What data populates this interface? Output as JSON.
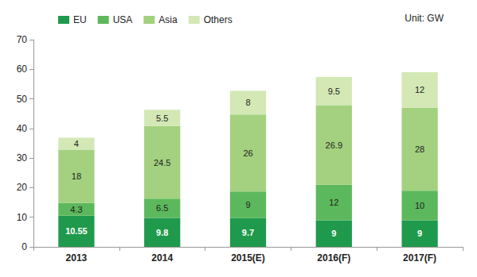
{
  "chart_data": {
    "type": "bar",
    "stacked": true,
    "data_labels": true,
    "grid": false,
    "legend": "top-left",
    "annotation": "Unit: GW",
    "categories": [
      "2013",
      "2014",
      "2015(E)",
      "2016(F)",
      "2017(F)"
    ],
    "series": [
      {
        "name": "EU",
        "color": "#1f9a4c",
        "values": [
          10.55,
          9.8,
          9.7,
          9,
          9
        ]
      },
      {
        "name": "USA",
        "color": "#5cb85c",
        "values": [
          4.3,
          6.5,
          9,
          12,
          10
        ]
      },
      {
        "name": "Asia",
        "color": "#a3d17f",
        "values": [
          18,
          24.5,
          26,
          26.9,
          28
        ]
      },
      {
        "name": "Others",
        "color": "#d3e8b4",
        "values": [
          4,
          5.5,
          8,
          9.5,
          12
        ]
      }
    ],
    "ylim": [
      0,
      70
    ],
    "yticks": [
      0,
      10,
      20,
      30,
      40,
      50,
      60,
      70
    ]
  }
}
